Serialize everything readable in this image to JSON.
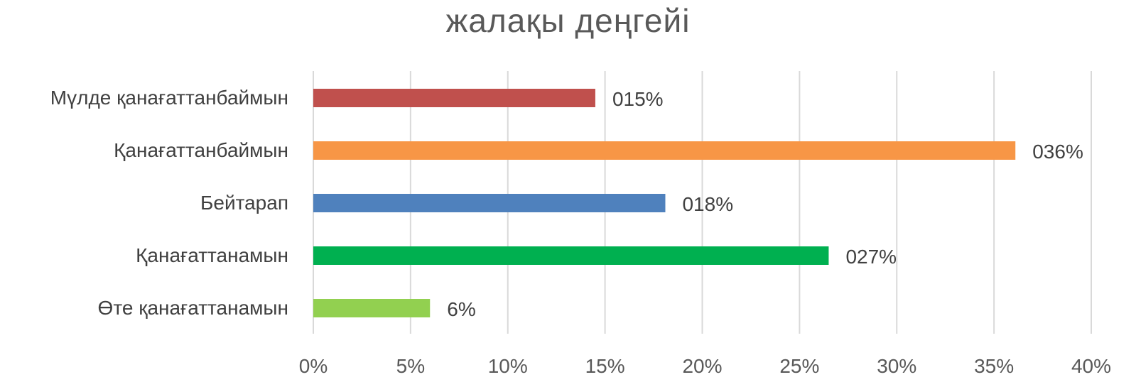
{
  "chart_data": {
    "type": "bar",
    "orientation": "horizontal",
    "title": "жалақы деңгейі",
    "xlabel": "",
    "ylabel": "",
    "xlim": [
      0,
      40
    ],
    "x_ticks": [
      "0%",
      "5%",
      "10%",
      "15%",
      "20%",
      "25%",
      "30%",
      "35%",
      "40%"
    ],
    "grid": "vertical",
    "legend": "none",
    "categories": [
      "Мүлде қанағаттанбаймын",
      "Қанағаттанбаймын",
      "Бейтарап",
      "Қанағаттанамын",
      "Өте қанағаттанамын"
    ],
    "values": [
      14.5,
      36.1,
      18.1,
      26.5,
      6.0
    ],
    "data_labels": [
      "015%",
      "036%",
      "018%",
      "027%",
      "6%"
    ],
    "colors": [
      "#c0504d",
      "#f79646",
      "#4f81bd",
      "#00b050",
      "#92d050"
    ]
  }
}
